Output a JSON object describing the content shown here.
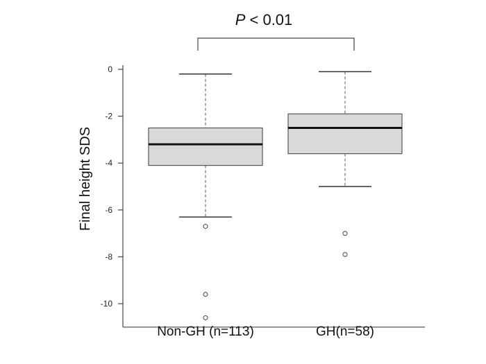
{
  "chart_data": {
    "type": "box",
    "ylabel": "Final height SDS",
    "ylim": [
      -11,
      0
    ],
    "yticks": [
      0,
      -2,
      -4,
      -6,
      -8,
      -10
    ],
    "yticks_labels": [
      "0",
      "-2",
      "-4",
      "-6",
      "-8",
      "-10"
    ],
    "categories": [
      "Non-GH (n=113)",
      "GH(n=58)"
    ],
    "series": [
      {
        "category": "Non-GH (n=113)",
        "whisker_high": -0.2,
        "q3": -2.5,
        "median": -3.2,
        "q1": -4.1,
        "whisker_low": -6.3,
        "outliers": [
          -6.7,
          -9.6,
          -10.6
        ]
      },
      {
        "category": "GH(n=58)",
        "whisker_high": -0.1,
        "q3": -1.9,
        "median": -2.5,
        "q1": -3.6,
        "whisker_low": -5.0,
        "outliers": [
          -7.0,
          -7.9
        ]
      }
    ],
    "annotation": {
      "p_symbol": "P",
      "p_rest": " < 0.01"
    },
    "style": {
      "box_fill": "#d9d9d9",
      "box_stroke": "#555555",
      "median_color": "#111111",
      "axis_color": "#444444"
    }
  }
}
